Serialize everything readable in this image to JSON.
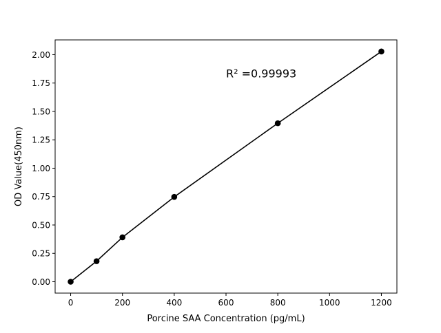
{
  "chart_data": {
    "type": "scatter",
    "title": "",
    "xlabel": "Porcine SAA Concentration (pg/mL)",
    "ylabel": "OD Value(450nm)",
    "xlim": [
      -60,
      1260
    ],
    "ylim": [
      -0.1,
      2.13
    ],
    "xticks": [
      0,
      200,
      400,
      600,
      800,
      1000,
      1200
    ],
    "xtick_labels": [
      "0",
      "200",
      "400",
      "600",
      "800",
      "1000",
      "1200"
    ],
    "yticks": [
      0,
      0.25,
      0.5,
      0.75,
      1.0,
      1.25,
      1.5,
      1.75,
      2.0
    ],
    "ytick_labels": [
      "0.00",
      "0.25",
      "0.50",
      "0.75",
      "1.00",
      "1.25",
      "1.50",
      "1.75",
      "2.00"
    ],
    "grid": false,
    "series": [
      {
        "x": [
          0,
          100,
          200,
          400,
          800,
          1200
        ],
        "y": [
          0.0,
          0.181,
          0.391,
          0.747,
          1.396,
          2.028
        ],
        "color": "#000000",
        "marker": "circle",
        "line": true
      }
    ],
    "annotations": [
      {
        "text": "R² =0.99993",
        "x": 600,
        "y": 1.83
      }
    ]
  }
}
